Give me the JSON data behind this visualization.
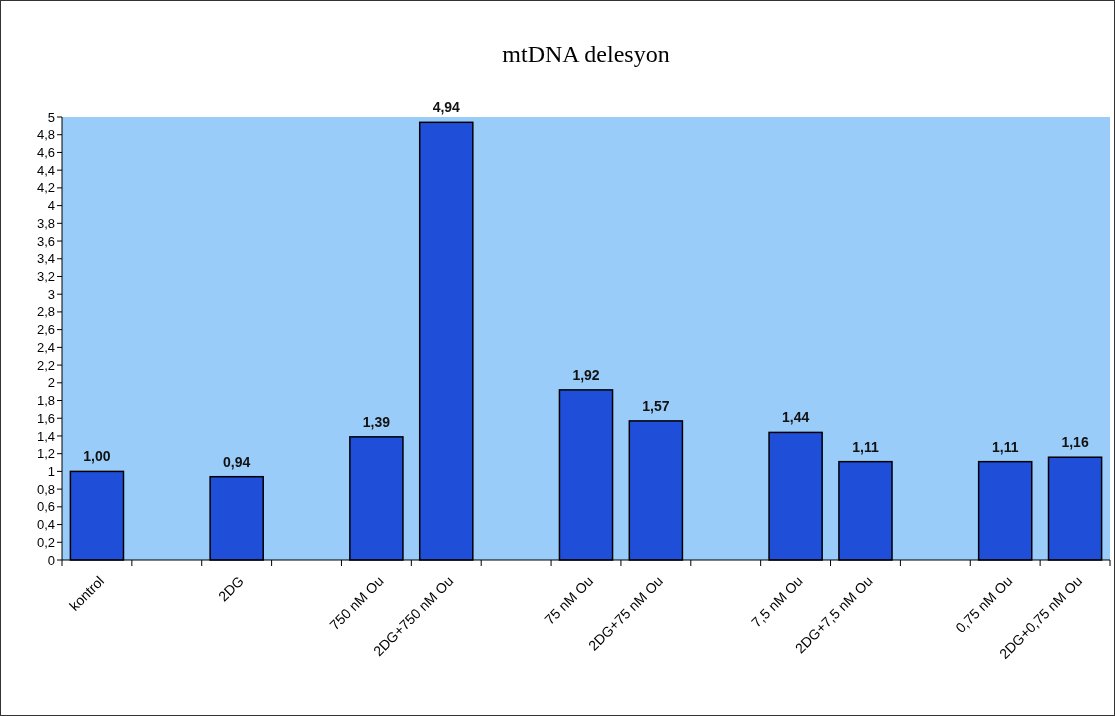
{
  "chart_data": {
    "type": "bar",
    "title": "mtDNA delesyon",
    "categories": [
      "kontrol",
      null,
      "2DG",
      null,
      "750 nM Ou",
      "2DG+750 nM Ou",
      null,
      "75 nM Ou",
      "2DG+75 nM Ou",
      null,
      "7,5 nM Ou",
      "2DG+7,5 nM Ou",
      null,
      "0,75 nM Ou",
      "2DG+0,75 nM Ou"
    ],
    "values": [
      1.0,
      null,
      0.94,
      null,
      1.39,
      4.94,
      null,
      1.92,
      1.57,
      null,
      1.44,
      1.11,
      null,
      1.11,
      1.16
    ],
    "value_labels": [
      "1,00",
      null,
      "0,94",
      null,
      "1,39",
      "4,94",
      null,
      "1,92",
      "1,57",
      null,
      "1,44",
      "1,11",
      null,
      "1,11",
      "1,16"
    ],
    "color": "#1f4fd8",
    "ylim": [
      0,
      5
    ],
    "yticks": [
      0,
      {
        "value": 0.2,
        "label": "0,2"
      },
      {
        "value": 0.4,
        "label": "0,4"
      },
      {
        "value": 0.6,
        "label": "0,6"
      },
      {
        "value": 0.8,
        "label": "0,8"
      },
      1,
      {
        "value": 1.2,
        "label": "1,2"
      },
      {
        "value": 1.4,
        "label": "1,4"
      },
      {
        "value": 1.6,
        "label": "1,6"
      },
      {
        "value": 1.8,
        "label": "1,8"
      },
      2,
      {
        "value": 2.2,
        "label": "2,2"
      },
      {
        "value": 2.4,
        "label": "2,4"
      },
      {
        "value": 2.6,
        "label": "2,6"
      },
      {
        "value": 2.8,
        "label": "2,8"
      },
      3,
      {
        "value": 3.2,
        "label": "3,2"
      },
      {
        "value": 3.4,
        "label": "3,4"
      },
      {
        "value": 3.6,
        "label": "3,6"
      },
      {
        "value": 3.8,
        "label": "3,8"
      },
      4,
      {
        "value": 4.2,
        "label": "4,2"
      },
      {
        "value": 4.4,
        "label": "4,4"
      },
      {
        "value": 4.6,
        "label": "4,6"
      },
      {
        "value": 4.8,
        "label": "4,8"
      },
      5
    ],
    "grid": false
  }
}
